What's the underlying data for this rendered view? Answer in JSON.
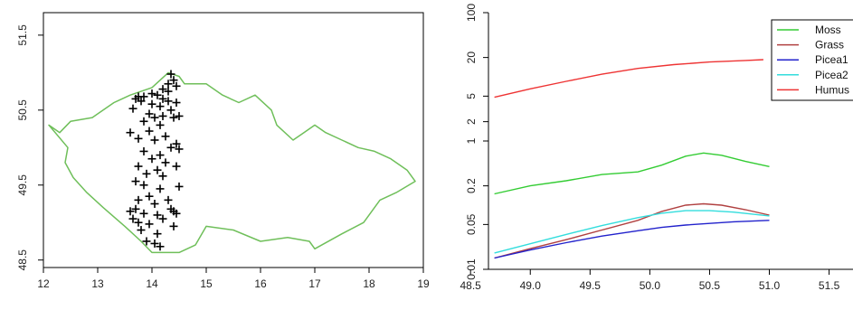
{
  "chart_data": [
    {
      "type": "scatter",
      "title": "",
      "xlabel": "",
      "ylabel": "",
      "xlim": [
        12,
        19
      ],
      "ylim": [
        48.4,
        51.8
      ],
      "x_ticks": [
        "12",
        "13",
        "14",
        "15",
        "16",
        "17",
        "18",
        "19"
      ],
      "x_tick_values": [
        12,
        13,
        14,
        15,
        16,
        17,
        18,
        19
      ],
      "y_ticks": [
        "48.5",
        "49.5",
        "50.5",
        "51.5"
      ],
      "y_tick_values": [
        48.5,
        49.5,
        50.5,
        51.5
      ],
      "border_color": "#6fbf5a",
      "point_color": "#000000",
      "points": [
        [
          14.35,
          50.98
        ],
        [
          14.4,
          50.9
        ],
        [
          14.3,
          50.85
        ],
        [
          14.45,
          50.82
        ],
        [
          14.2,
          50.78
        ],
        [
          14.3,
          50.75
        ],
        [
          14.0,
          50.72
        ],
        [
          14.1,
          50.7
        ],
        [
          13.75,
          50.68
        ],
        [
          13.85,
          50.68
        ],
        [
          13.7,
          50.65
        ],
        [
          13.8,
          50.62
        ],
        [
          14.2,
          50.65
        ],
        [
          14.3,
          50.62
        ],
        [
          14.45,
          50.6
        ],
        [
          13.65,
          50.52
        ],
        [
          14.0,
          50.58
        ],
        [
          14.15,
          50.55
        ],
        [
          14.35,
          50.5
        ],
        [
          13.95,
          50.45
        ],
        [
          14.2,
          50.42
        ],
        [
          14.05,
          50.4
        ],
        [
          14.4,
          50.4
        ],
        [
          14.5,
          50.42
        ],
        [
          13.85,
          50.35
        ],
        [
          14.15,
          50.3
        ],
        [
          13.6,
          50.2
        ],
        [
          13.95,
          50.22
        ],
        [
          14.25,
          50.15
        ],
        [
          13.75,
          50.12
        ],
        [
          14.05,
          50.1
        ],
        [
          14.45,
          50.05
        ],
        [
          14.35,
          50.0
        ],
        [
          13.85,
          49.95
        ],
        [
          14.15,
          49.9
        ],
        [
          14.5,
          49.98
        ],
        [
          14.0,
          49.85
        ],
        [
          14.25,
          49.8
        ],
        [
          13.75,
          49.75
        ],
        [
          14.1,
          49.7
        ],
        [
          14.45,
          49.75
        ],
        [
          13.9,
          49.65
        ],
        [
          14.2,
          49.62
        ],
        [
          13.7,
          49.55
        ],
        [
          13.85,
          49.5
        ],
        [
          14.15,
          49.45
        ],
        [
          14.5,
          49.48
        ],
        [
          13.95,
          49.35
        ],
        [
          14.3,
          49.3
        ],
        [
          13.75,
          49.3
        ],
        [
          14.05,
          49.25
        ],
        [
          13.6,
          49.15
        ],
        [
          14.4,
          49.15
        ],
        [
          14.45,
          49.12
        ],
        [
          13.85,
          49.12
        ],
        [
          14.1,
          49.1
        ],
        [
          13.65,
          49.05
        ],
        [
          14.2,
          49.05
        ],
        [
          13.75,
          49.0
        ],
        [
          13.95,
          48.98
        ],
        [
          14.4,
          48.95
        ],
        [
          13.8,
          48.9
        ],
        [
          14.1,
          48.85
        ],
        [
          13.9,
          48.75
        ],
        [
          14.05,
          48.72
        ],
        [
          14.15,
          48.68
        ],
        [
          13.7,
          49.18
        ],
        [
          14.35,
          49.18
        ]
      ]
    },
    {
      "type": "line",
      "title": "",
      "xlabel": "",
      "ylabel": "",
      "y_scale": "log",
      "xlim": [
        48.65,
        51.7
      ],
      "ylim": [
        0.01,
        100
      ],
      "x_ticks": [
        "48.5",
        "49.0",
        "49.5",
        "50.0",
        "50.5",
        "51.0",
        "51.5"
      ],
      "x_tick_values": [
        48.5,
        49.0,
        49.5,
        50.0,
        50.5,
        51.0,
        51.5
      ],
      "y_ticks": [
        "0.01",
        "0.05",
        "0.2",
        "1",
        "2",
        "5",
        "20",
        "100"
      ],
      "y_tick_values": [
        0.01,
        0.05,
        0.2,
        1,
        2,
        5,
        20,
        100
      ],
      "legend_position": "top-right",
      "series": [
        {
          "name": "Moss",
          "color": "#33cc33",
          "x": [
            48.7,
            49.0,
            49.3,
            49.6,
            49.9,
            50.1,
            50.3,
            50.45,
            50.6,
            50.8,
            51.0
          ],
          "y": [
            0.15,
            0.2,
            0.24,
            0.3,
            0.33,
            0.42,
            0.58,
            0.65,
            0.6,
            0.48,
            0.4
          ]
        },
        {
          "name": "Grass",
          "color": "#b04040",
          "x": [
            48.7,
            49.0,
            49.3,
            49.6,
            49.9,
            50.1,
            50.3,
            50.45,
            50.6,
            50.8,
            51.0
          ],
          "y": [
            0.015,
            0.021,
            0.029,
            0.041,
            0.058,
            0.08,
            0.1,
            0.105,
            0.1,
            0.085,
            0.07
          ]
        },
        {
          "name": "Picea1",
          "color": "#2222cc",
          "x": [
            48.7,
            49.0,
            49.3,
            49.6,
            49.9,
            50.1,
            50.3,
            50.5,
            50.7,
            51.0
          ],
          "y": [
            0.015,
            0.02,
            0.026,
            0.033,
            0.04,
            0.045,
            0.049,
            0.052,
            0.055,
            0.058
          ]
        },
        {
          "name": "Picea2",
          "color": "#33dddd",
          "x": [
            48.7,
            49.0,
            49.3,
            49.6,
            49.9,
            50.1,
            50.3,
            50.5,
            50.7,
            51.0
          ],
          "y": [
            0.018,
            0.025,
            0.035,
            0.048,
            0.064,
            0.075,
            0.082,
            0.082,
            0.078,
            0.068
          ]
        },
        {
          "name": "Humus",
          "color": "#ee3333",
          "x": [
            48.7,
            49.0,
            49.3,
            49.6,
            49.9,
            50.2,
            50.5,
            50.8,
            50.95
          ],
          "y": [
            4.8,
            6.5,
            8.5,
            11,
            13.5,
            15.5,
            17,
            18,
            18.5
          ]
        }
      ]
    }
  ]
}
